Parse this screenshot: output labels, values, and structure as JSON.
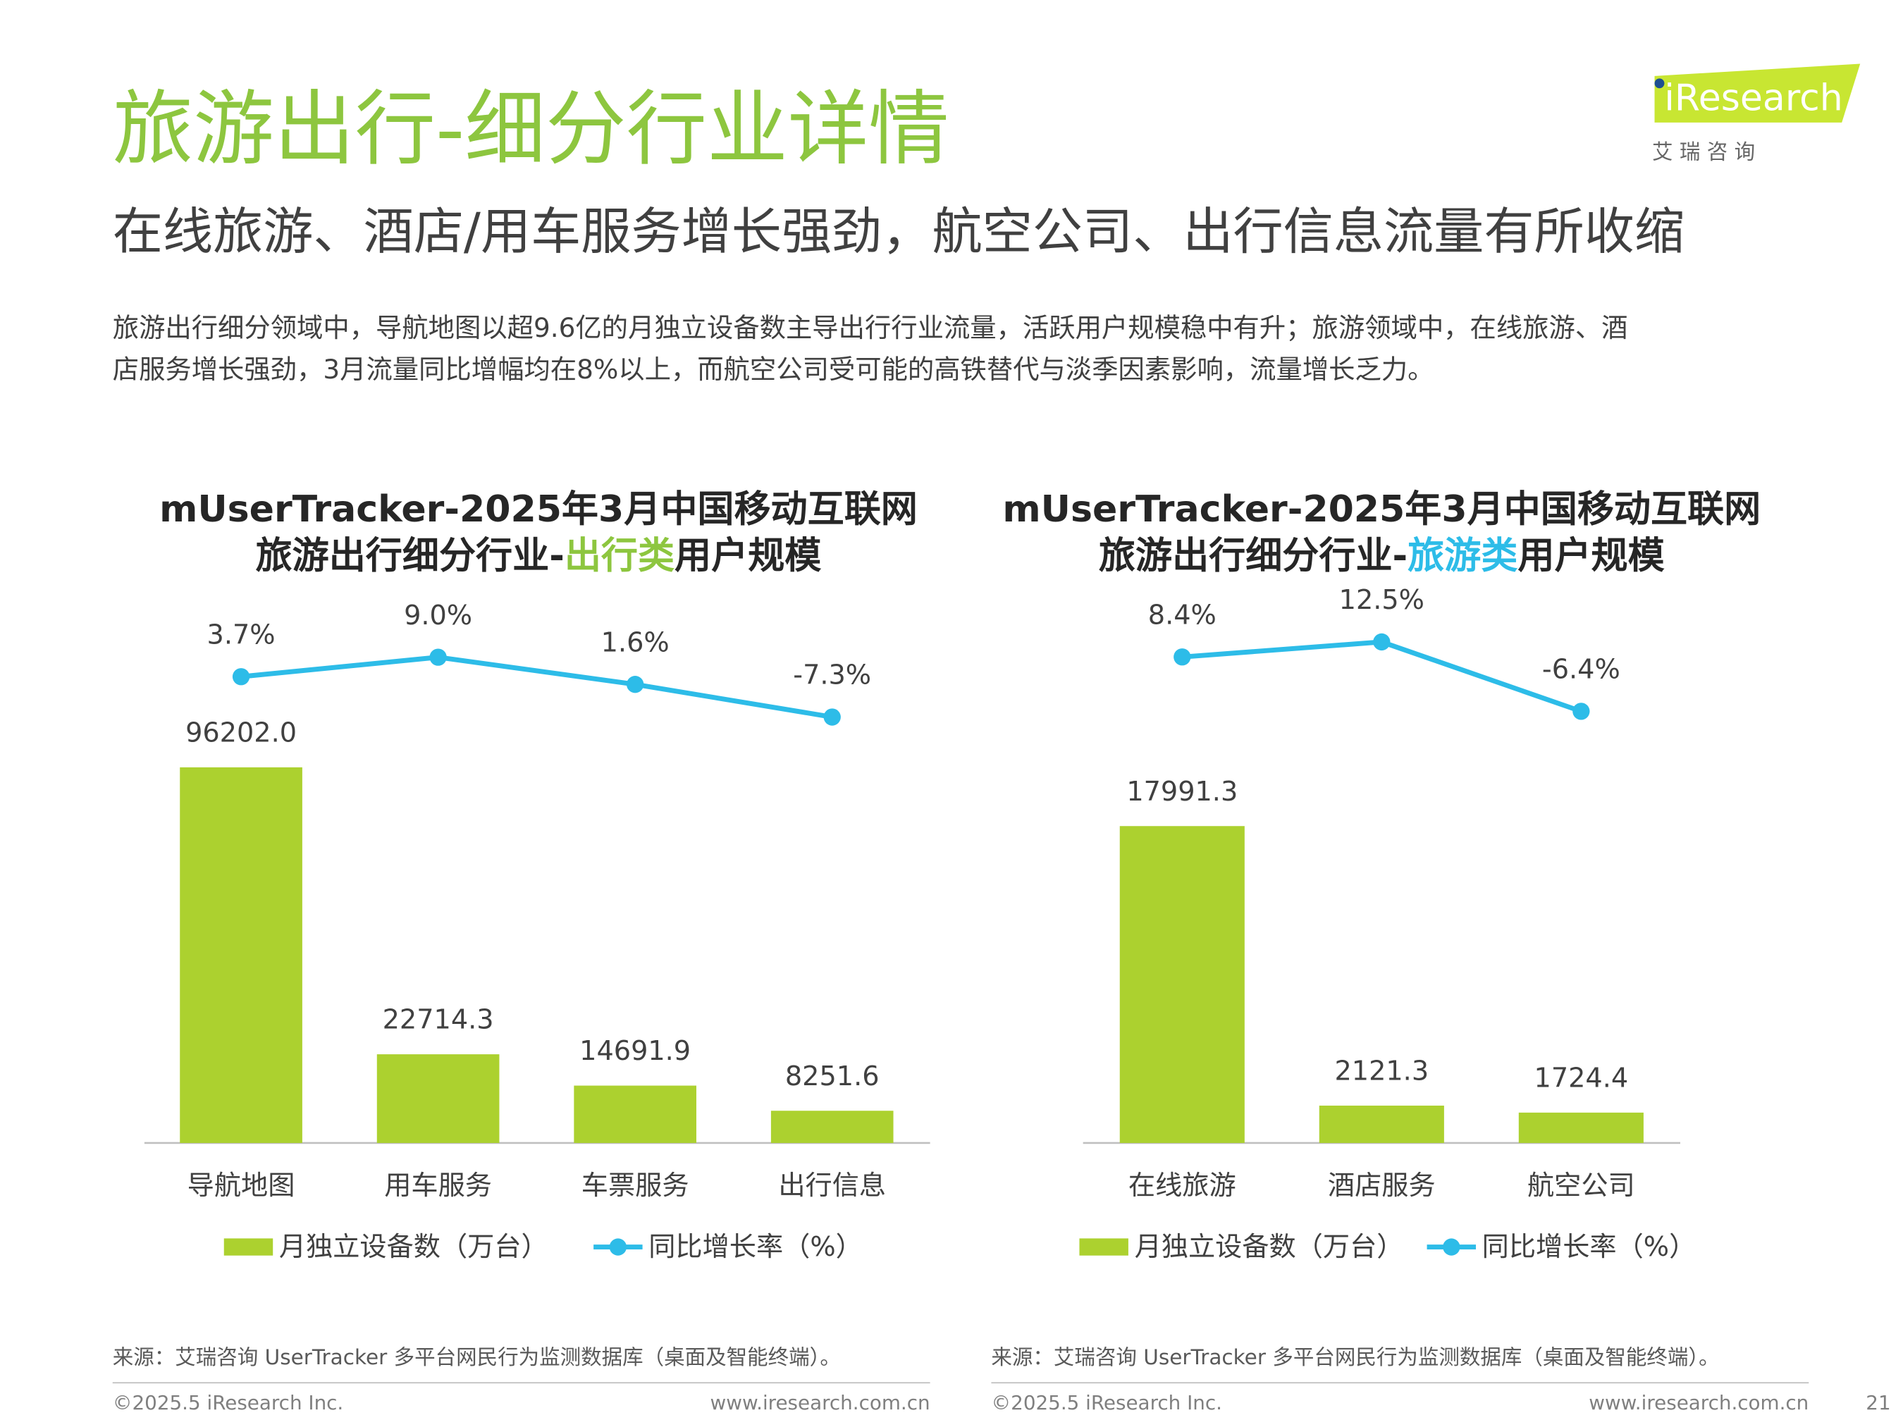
{
  "header": {
    "title": "旅游出行-细分行业详情",
    "subtitle": "在线旅游、酒店/用车服务增长强劲，航空公司、出行信息流量有所收缩",
    "description": [
      "旅游出行细分领域中，导航地图以超9.6亿的月独立设备数主导出行行业流量，活跃用户规模稳中有升；旅游领域中，在线旅游、酒",
      "店服务增长强劲，3月流量同比增幅均在8%以上，而航空公司受可能的高铁替代与淡季因素影响，流量增长乏力。"
    ]
  },
  "logo": {
    "brand": "iResearch",
    "tagline": "艾 瑞 咨 询"
  },
  "chart_data": [
    {
      "type": "bar",
      "title": "mUserTracker-2025年3月中国移动互联网",
      "subtitle_parts": [
        "旅游出行细分行业-",
        "出行类",
        "用户规模"
      ],
      "highlight_color": "#8dc63f",
      "categories": [
        "导航地图",
        "用车服务",
        "车票服务",
        "出行信息"
      ],
      "series": [
        {
          "name": "月独立设备数（万台）",
          "type": "bar",
          "color": "#acd12f",
          "values": [
            96202.0,
            22714.3,
            14691.9,
            8251.6
          ],
          "value_labels": [
            "96202.0",
            "22714.3",
            "14691.9",
            "8251.6"
          ]
        },
        {
          "name": "同比增长率（%）",
          "type": "line",
          "axis": "y2",
          "color": "#2dbce8",
          "values": [
            3.7,
            9.0,
            1.6,
            -7.3
          ],
          "value_labels": [
            "3.7%",
            "9.0%",
            "1.6%",
            "-7.3%"
          ]
        }
      ],
      "source": "来源：艾瑞咨询 UserTracker 多平台网民行为监测数据库（桌面及智能终端）。"
    },
    {
      "type": "bar",
      "title": "mUserTracker-2025年3月中国移动互联网",
      "subtitle_parts": [
        "旅游出行细分行业-",
        "旅游类",
        "用户规模"
      ],
      "highlight_color": "#2dbce8",
      "categories": [
        "在线旅游",
        "酒店服务",
        "航空公司"
      ],
      "series": [
        {
          "name": "月独立设备数（万台）",
          "type": "bar",
          "color": "#acd12f",
          "values": [
            17991.3,
            2121.3,
            1724.4
          ],
          "value_labels": [
            "17991.3",
            "2121.3",
            "1724.4"
          ]
        },
        {
          "name": "同比增长率（%）",
          "type": "line",
          "axis": "y2",
          "color": "#2dbce8",
          "values": [
            8.4,
            12.5,
            -6.4
          ],
          "value_labels": [
            "8.4%",
            "12.5%",
            "-6.4%"
          ]
        }
      ],
      "source": "来源：艾瑞咨询 UserTracker 多平台网民行为监测数据库（桌面及智能终端）。"
    }
  ],
  "footer": [
    {
      "copyright": "©2025.5 iResearch Inc.",
      "website": "www.iresearch.com.cn"
    },
    {
      "copyright": "©2025.5 iResearch Inc.",
      "website": "www.iresearch.com.cn"
    }
  ],
  "page_number": "21"
}
